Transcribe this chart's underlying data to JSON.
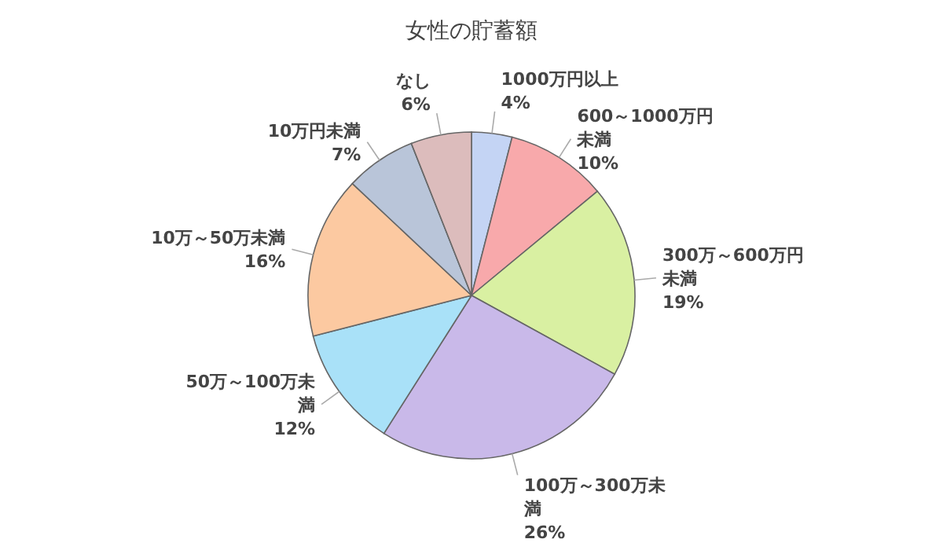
{
  "chart_data": {
    "type": "pie",
    "title": "女性の貯蓄額",
    "categories": [
      "1000万円以上",
      "600～1000万円未満",
      "300万～600万円未満",
      "100万～300万未満",
      "50万～100万未満",
      "10万～50万未満",
      "10万円未満",
      "なし"
    ],
    "values": [
      4,
      10,
      19,
      26,
      12,
      16,
      7,
      6
    ],
    "value_labels": [
      "4%",
      "10%",
      "19%",
      "26%",
      "12%",
      "16%",
      "7%",
      "6%"
    ],
    "colors": [
      "#c4d4f4",
      "#f8a9ab",
      "#d9f0a2",
      "#c9b9e9",
      "#a9e1f8",
      "#fcc9a1",
      "#b9c5d9",
      "#dcbcbc"
    ]
  }
}
